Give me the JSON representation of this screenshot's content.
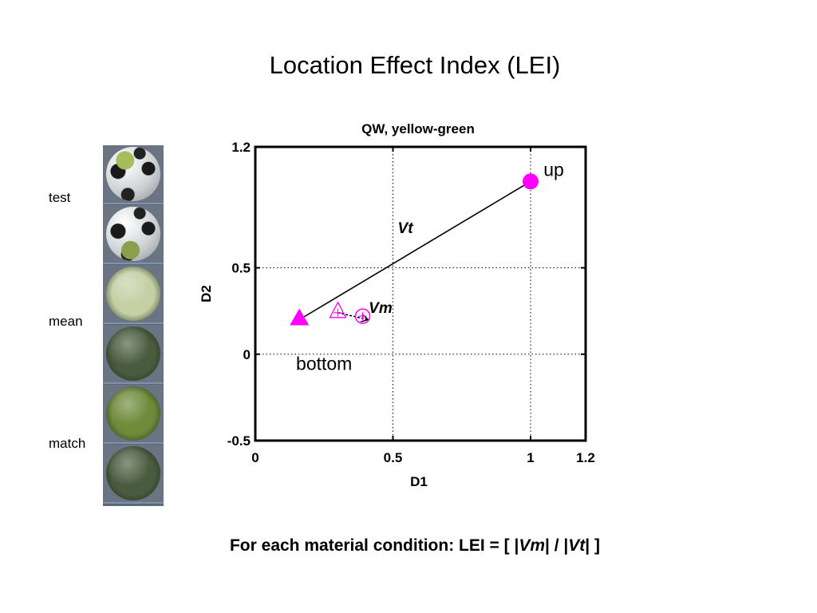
{
  "slide": {
    "title": "Location Effect Index (LEI)",
    "formula_prefix": "For each material condition: LEI = [ |",
    "formula_vm": "Vm",
    "formula_mid": "| / |",
    "formula_vt": "Vt",
    "formula_suffix": "| ]"
  },
  "side_labels": {
    "test": "test",
    "mean": "mean",
    "match": "match"
  },
  "spheres": [
    {
      "kind": "soccer-ball",
      "patch_color": "#a7bd5c",
      "patch_position": "top"
    },
    {
      "kind": "soccer-ball",
      "patch_color": "#8aa04c",
      "patch_position": "bottom"
    },
    {
      "kind": "matte",
      "color": "#c4cfa4"
    },
    {
      "kind": "matte",
      "color": "#4a5c3f"
    },
    {
      "kind": "matte",
      "color": "#6e8a3a"
    },
    {
      "kind": "matte",
      "color": "#4a5c3f"
    }
  ],
  "chart_data": {
    "type": "scatter",
    "title": "QW, yellow-green",
    "xlabel": "D1",
    "ylabel": "D2",
    "xlim": [
      0,
      1.2
    ],
    "ylim": [
      -0.5,
      1.2
    ],
    "xticks": [
      0,
      0.5,
      1,
      1.2
    ],
    "xtick_labels": [
      "0",
      "0.5",
      "1",
      "1.2"
    ],
    "yticks": [
      -0.5,
      0,
      0.5,
      1.2
    ],
    "ytick_labels": [
      "-0.5",
      "0",
      "0.5",
      "1.2"
    ],
    "grid": "dotted at 0.5 and 1 (x), 0 and 0.5 (y)",
    "points": [
      {
        "x": 1.0,
        "y": 1.0,
        "marker": "circle-filled",
        "label": "up"
      },
      {
        "x": 0.16,
        "y": 0.2,
        "marker": "triangle-filled",
        "label": "bottom"
      },
      {
        "x": 0.39,
        "y": 0.22,
        "marker": "circle-open",
        "label": ""
      },
      {
        "x": 0.3,
        "y": 0.24,
        "marker": "triangle-open",
        "label": ""
      }
    ],
    "vectors": [
      {
        "name": "Vt",
        "from": [
          0.16,
          0.2
        ],
        "to": [
          1.0,
          1.0
        ]
      },
      {
        "name": "Vm",
        "from": [
          0.3,
          0.24
        ],
        "to": [
          0.41,
          0.2
        ]
      }
    ],
    "marker_color": "#ff00ff"
  }
}
